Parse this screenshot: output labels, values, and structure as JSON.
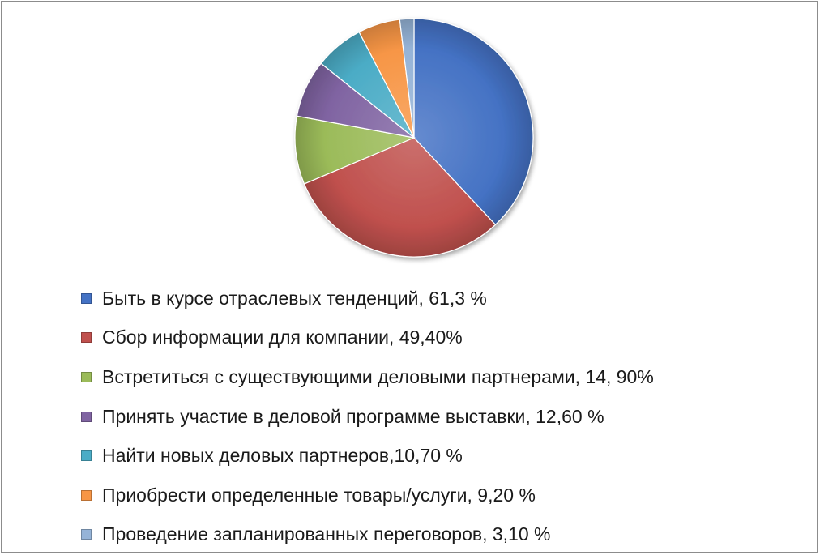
{
  "chart_data": {
    "type": "pie",
    "legend_position": "bottom",
    "title": "",
    "slices": [
      {
        "label": "Быть в курсе отраслевых тенденций, 61,3 %",
        "value": 61.3,
        "color": "#4472C4"
      },
      {
        "label": "Сбор информации для компании, 49,40%",
        "value": 49.4,
        "color": "#C0504D"
      },
      {
        "label": "Встретиться с существующими деловыми партнерами, 14, 90%",
        "value": 14.9,
        "color": "#9BBB59"
      },
      {
        "label": "Принять участие в деловой программе выставки,  12,60 %",
        "value": 12.6,
        "color": "#8064A2"
      },
      {
        "label": "Найти новых деловых партнеров,10,70 %",
        "value": 10.7,
        "color": "#4BACC6"
      },
      {
        "label": "Приобрести определенные товары/услуги, 9,20 %",
        "value": 9.2,
        "color": "#F79646"
      },
      {
        "label": "Проведение запланированных переговоров, 3,10 %",
        "value": 3.1,
        "color": "#95B3D7"
      }
    ]
  }
}
